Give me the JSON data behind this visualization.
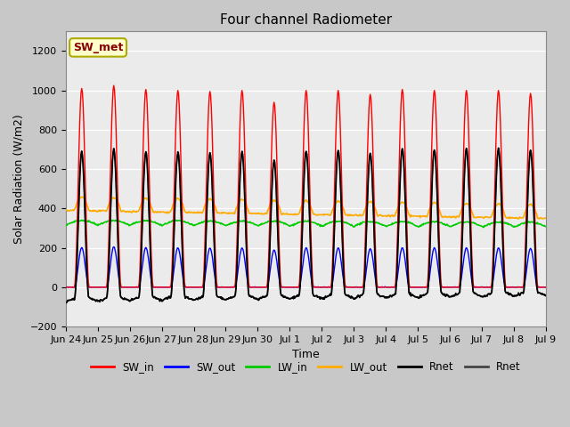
{
  "title": "Four channel Radiometer",
  "xlabel": "Time",
  "ylabel": "Solar Radiation (W/m2)",
  "ylim": [
    -200,
    1300
  ],
  "yticks": [
    -200,
    0,
    200,
    400,
    600,
    800,
    1000,
    1200
  ],
  "plot_bg_color": "#ebebeb",
  "fig_bg_color": "#c8c8c8",
  "annotation_text": "SW_met",
  "annotation_bg": "#ffffcc",
  "annotation_edge": "#aaaa00",
  "annotation_text_color": "#880000",
  "x_tick_labels": [
    "Jun 24",
    "Jun 25",
    "Jun 26",
    "Jun 27",
    "Jun 28",
    "Jun 29",
    "Jun 30",
    "Jul 1",
    "Jul 2",
    "Jul 3",
    "Jul 4",
    "Jul 5",
    "Jul 6",
    "Jul 7",
    "Jul 8",
    "Jul 9"
  ],
  "n_days": 15,
  "colors": {
    "SW_in": "#ff0000",
    "SW_out": "#0000ff",
    "LW_in": "#00cc00",
    "LW_out": "#ffaa00",
    "Rnet_black": "#000000",
    "Rnet_dark": "#444444"
  },
  "legend": [
    {
      "label": "SW_in",
      "color": "#ff0000"
    },
    {
      "label": "SW_out",
      "color": "#0000ff"
    },
    {
      "label": "LW_in",
      "color": "#00cc00"
    },
    {
      "label": "LW_out",
      "color": "#ffaa00"
    },
    {
      "label": "Rnet",
      "color": "#000000"
    },
    {
      "label": "Rnet",
      "color": "#444444"
    }
  ]
}
